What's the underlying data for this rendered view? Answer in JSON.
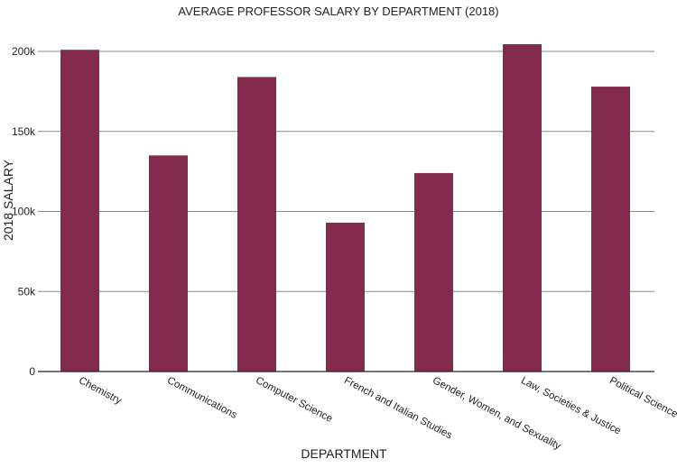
{
  "chart_data": {
    "type": "bar",
    "title": "AVERAGE PROFESSOR SALARY BY DEPARTMENT (2018)",
    "xlabel": "DEPARTMENT",
    "ylabel": "2018 SALARY",
    "categories": [
      "Chemistry",
      "Communications",
      "Computer Science",
      "French and Italian Studies",
      "Gender, Women, and Sexuality",
      "Law, Societies & Justice",
      "Political Science"
    ],
    "values": [
      201000,
      135000,
      184000,
      93000,
      124000,
      204500,
      178000
    ],
    "ylim": [
      0,
      200000
    ],
    "yticks": [
      0,
      50000,
      100000,
      150000,
      200000
    ],
    "ytick_labels": [
      "0",
      "50k",
      "100k",
      "150k",
      "200k"
    ],
    "grid": true,
    "bar_color": "#832a4d"
  }
}
